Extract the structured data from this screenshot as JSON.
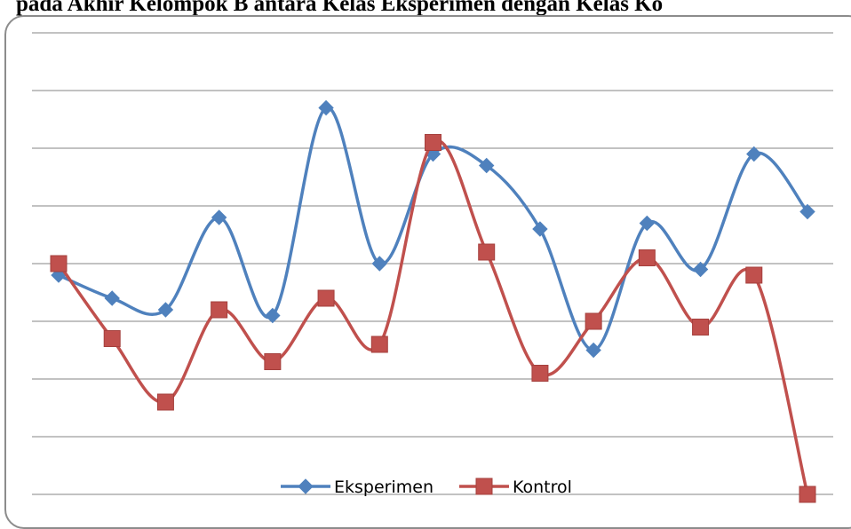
{
  "heading": "pada Akhir Kelompok B antara Kelas Eksperimen dengan Kelas Ko",
  "chart_data": {
    "type": "line",
    "smooth": true,
    "grid": true,
    "legend_position": "bottom",
    "ylim": [
      0,
      8
    ],
    "x": [
      1,
      2,
      3,
      4,
      5,
      6,
      7,
      8,
      9,
      10,
      11,
      12,
      13,
      14,
      15
    ],
    "series": [
      {
        "name": "Eksperimen",
        "color": "#4f81bd",
        "marker": "diamond",
        "values": [
          3.8,
          3.4,
          3.2,
          4.8,
          3.1,
          6.7,
          4.0,
          5.9,
          5.7,
          4.6,
          2.5,
          4.7,
          3.9,
          5.9,
          4.9
        ]
      },
      {
        "name": "Kontrol",
        "color": "#c0504d",
        "marker": "square",
        "values": [
          4.0,
          2.7,
          1.6,
          3.2,
          2.3,
          3.4,
          2.6,
          6.1,
          4.2,
          2.1,
          3.0,
          4.1,
          2.9,
          3.8,
          0.0
        ]
      }
    ]
  }
}
